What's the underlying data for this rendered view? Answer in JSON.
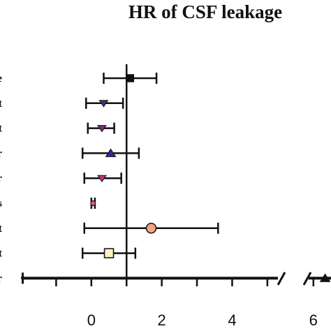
{
  "chart_data": {
    "type": "forest",
    "title": "HR of CSF leakage",
    "x_axis": {
      "segments": [
        {
          "range": [
            -2,
            5.3
          ],
          "ticks": [
            0,
            2,
            4
          ]
        },
        {
          "range": [
            5.6,
            6.6
          ],
          "ticks": [
            6
          ]
        }
      ],
      "tick_labels": [
        "0",
        "2",
        "4",
        "6"
      ],
      "axis_break": true
    },
    "reference_line": 1,
    "row_labels": [
      "e",
      "t",
      "t",
      "r",
      "r",
      "s",
      "t",
      "t",
      "r"
    ],
    "rows": [
      {
        "estimate": 1.1,
        "lower": 0.35,
        "upper": 1.85,
        "marker": "square",
        "color": "#111111"
      },
      {
        "estimate": 0.35,
        "lower": -0.15,
        "upper": 0.9,
        "marker": "triangle-down",
        "color": "#4b2d7f"
      },
      {
        "estimate": 0.3,
        "lower": -0.1,
        "upper": 0.65,
        "marker": "triangle-down",
        "color": "#7b2c7e"
      },
      {
        "estimate": 0.55,
        "lower": -0.25,
        "upper": 1.35,
        "marker": "triangle-up",
        "color": "#3d2490"
      },
      {
        "estimate": 0.3,
        "lower": -0.2,
        "upper": 0.85,
        "marker": "triangle-down",
        "color": "#b23a7a"
      },
      {
        "estimate": 0.05,
        "lower": 0.0,
        "upper": 0.1,
        "marker": "dot",
        "color": "#e0566a"
      },
      {
        "estimate": 1.7,
        "lower": -0.2,
        "upper": 3.6,
        "marker": "circle",
        "color": "#f4a582"
      },
      {
        "estimate": 0.5,
        "lower": -0.25,
        "upper": 1.25,
        "marker": "square",
        "color": "#f7f3c2"
      },
      {
        "estimate": 6.4,
        "lower": -1.95,
        "upper": 6.6,
        "marker": "triangle-up",
        "color": "#111111"
      }
    ]
  }
}
